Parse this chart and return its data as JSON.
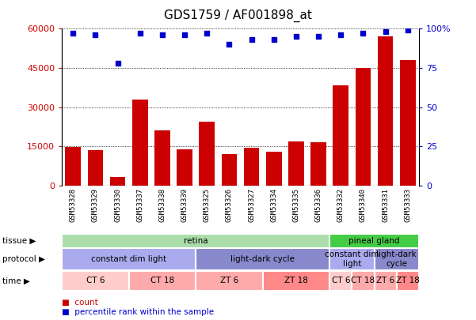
{
  "title": "GDS1759 / AF001898_at",
  "samples": [
    "GSM53328",
    "GSM53329",
    "GSM53330",
    "GSM53337",
    "GSM53338",
    "GSM53339",
    "GSM53325",
    "GSM53326",
    "GSM53327",
    "GSM53334",
    "GSM53335",
    "GSM53336",
    "GSM53332",
    "GSM53340",
    "GSM53331",
    "GSM53333"
  ],
  "counts": [
    14800,
    13500,
    3200,
    33000,
    21000,
    13800,
    24500,
    12000,
    14500,
    13000,
    17000,
    16500,
    38500,
    45000,
    57000,
    48000
  ],
  "percentile_ranks": [
    97,
    96,
    78,
    97,
    96,
    96,
    97,
    90,
    93,
    93,
    95,
    95,
    96,
    97,
    98,
    99
  ],
  "bar_color": "#cc0000",
  "dot_color": "#0000cc",
  "ylim_left": [
    0,
    60000
  ],
  "yticks_left": [
    0,
    15000,
    30000,
    45000,
    60000
  ],
  "yticks_right": [
    0,
    25,
    50,
    75,
    100
  ],
  "grid_lines": [
    15000,
    30000,
    45000
  ],
  "tissue_groups": [
    {
      "label": "retina",
      "start": 0,
      "end": 12,
      "color": "#aaddaa"
    },
    {
      "label": "pineal gland",
      "start": 12,
      "end": 16,
      "color": "#44cc44"
    }
  ],
  "protocol_groups": [
    {
      "label": "constant dim light",
      "start": 0,
      "end": 6,
      "color": "#aaaaee"
    },
    {
      "label": "light-dark cycle",
      "start": 6,
      "end": 12,
      "color": "#8888cc"
    },
    {
      "label": "constant dim\nlight",
      "start": 12,
      "end": 14,
      "color": "#aaaaee"
    },
    {
      "label": "light-dark\ncycle",
      "start": 14,
      "end": 16,
      "color": "#8888cc"
    }
  ],
  "time_groups": [
    {
      "label": "CT 6",
      "start": 0,
      "end": 3,
      "color": "#ffcccc"
    },
    {
      "label": "CT 18",
      "start": 3,
      "end": 6,
      "color": "#ffaaaa"
    },
    {
      "label": "ZT 6",
      "start": 6,
      "end": 9,
      "color": "#ffaaaa"
    },
    {
      "label": "ZT 18",
      "start": 9,
      "end": 12,
      "color": "#ff8888"
    },
    {
      "label": "CT 6",
      "start": 12,
      "end": 13,
      "color": "#ffcccc"
    },
    {
      "label": "CT 18",
      "start": 13,
      "end": 14,
      "color": "#ffaaaa"
    },
    {
      "label": "ZT 6",
      "start": 14,
      "end": 15,
      "color": "#ffaaaa"
    },
    {
      "label": "ZT 18",
      "start": 15,
      "end": 16,
      "color": "#ff8888"
    }
  ],
  "row_labels": [
    "tissue",
    "protocol",
    "time"
  ],
  "legend_items": [
    {
      "label": "count",
      "color": "#cc0000"
    },
    {
      "label": "percentile rank within the sample",
      "color": "#0000cc"
    }
  ],
  "bg_color": "#ffffff",
  "plot_bg": "#ffffff",
  "xticklabel_bg": "#dddddd"
}
